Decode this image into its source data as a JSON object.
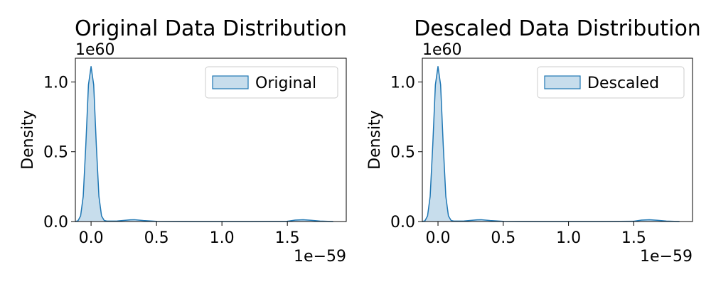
{
  "colors": {
    "line": "#1f77b4",
    "fill": "#1f77b4",
    "fill_opacity": 0.25,
    "axes": "#000000",
    "legend_border": "#cccccc",
    "background": "#ffffff"
  },
  "chart_data": [
    {
      "type": "area",
      "title": "Original Data Distribution",
      "xlabel": "",
      "ylabel": "Density",
      "x_multiplier": "1e−59",
      "y_multiplier": "1e60",
      "xlim": [
        -0.12,
        1.95
      ],
      "ylim": [
        0,
        1.17
      ],
      "x_ticks": [
        0.0,
        0.5,
        1.0,
        1.5
      ],
      "x_tick_labels": [
        "0.0",
        "0.5",
        "1.0",
        "1.5"
      ],
      "y_ticks": [
        0.0,
        0.5,
        1.0
      ],
      "y_tick_labels": [
        "0.0",
        "0.5",
        "1.0"
      ],
      "grid": false,
      "legend_position": "top-right",
      "series": [
        {
          "name": "Original",
          "x": [
            -0.12,
            -0.1,
            -0.08,
            -0.06,
            -0.04,
            -0.02,
            0.0,
            0.02,
            0.04,
            0.06,
            0.08,
            0.1,
            0.12,
            0.2,
            0.3,
            0.33,
            0.4,
            0.5,
            0.8,
            1.2,
            1.5,
            1.56,
            1.62,
            1.68,
            1.75,
            1.85
          ],
          "y": [
            0.0,
            0.005,
            0.04,
            0.18,
            0.55,
            0.98,
            1.11,
            0.98,
            0.55,
            0.18,
            0.04,
            0.008,
            0.003,
            0.004,
            0.012,
            0.013,
            0.007,
            0.001,
            0.0,
            0.0,
            0.002,
            0.01,
            0.013,
            0.009,
            0.003,
            0.0
          ]
        }
      ]
    },
    {
      "type": "area",
      "title": "Descaled Data Distribution",
      "xlabel": "",
      "ylabel": "Density",
      "x_multiplier": "1e−59",
      "y_multiplier": "1e60",
      "xlim": [
        -0.12,
        1.95
      ],
      "ylim": [
        0,
        1.17
      ],
      "x_ticks": [
        0.0,
        0.5,
        1.0,
        1.5
      ],
      "x_tick_labels": [
        "0.0",
        "0.5",
        "1.0",
        "1.5"
      ],
      "y_ticks": [
        0.0,
        0.5,
        1.0
      ],
      "y_tick_labels": [
        "0.0",
        "0.5",
        "1.0"
      ],
      "grid": false,
      "legend_position": "top-right",
      "series": [
        {
          "name": "Descaled",
          "x": [
            -0.12,
            -0.1,
            -0.08,
            -0.06,
            -0.04,
            -0.02,
            0.0,
            0.02,
            0.04,
            0.06,
            0.08,
            0.1,
            0.12,
            0.2,
            0.3,
            0.33,
            0.4,
            0.5,
            0.8,
            1.2,
            1.5,
            1.56,
            1.62,
            1.68,
            1.75,
            1.85
          ],
          "y": [
            0.0,
            0.005,
            0.04,
            0.18,
            0.55,
            0.98,
            1.11,
            0.98,
            0.55,
            0.18,
            0.04,
            0.008,
            0.003,
            0.004,
            0.012,
            0.013,
            0.007,
            0.001,
            0.0,
            0.0,
            0.002,
            0.01,
            0.013,
            0.009,
            0.003,
            0.0
          ]
        }
      ]
    }
  ]
}
